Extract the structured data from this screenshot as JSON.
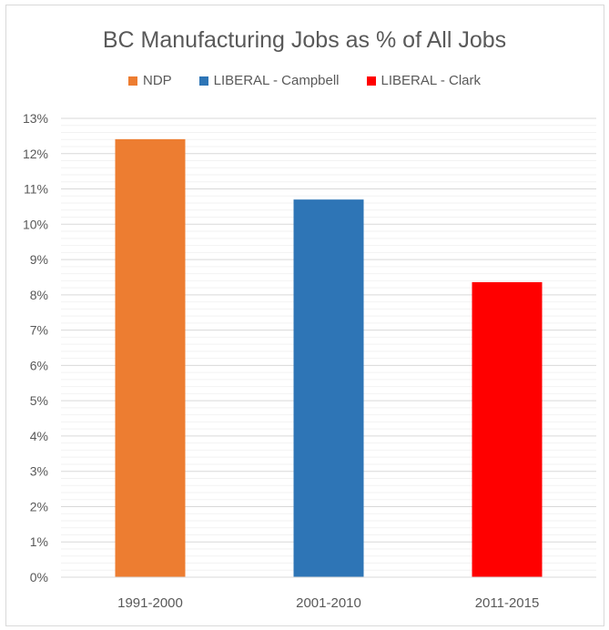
{
  "chart_data": {
    "type": "bar",
    "title": "BC Manufacturing Jobs as % of All Jobs",
    "categories": [
      "1991-2000",
      "2001-2010",
      "2011-2015"
    ],
    "series": [
      {
        "name": "NDP",
        "color": "#ed7d31",
        "values": [
          12.41,
          null,
          null
        ]
      },
      {
        "name": "LIBERAL - Campbell",
        "color": "#2e75b6",
        "values": [
          null,
          10.7,
          null
        ]
      },
      {
        "name": "LIBERAL - Clark",
        "color": "#ff0000",
        "values": [
          null,
          null,
          8.36
        ]
      }
    ],
    "xlabel": "",
    "ylabel": "",
    "ylim": [
      0,
      13
    ],
    "yticks": [
      "0%",
      "1%",
      "2%",
      "3%",
      "4%",
      "5%",
      "6%",
      "7%",
      "8%",
      "9%",
      "10%",
      "11%",
      "12%",
      "13%"
    ],
    "grid": "major and minor horizontal",
    "legend": "top"
  }
}
